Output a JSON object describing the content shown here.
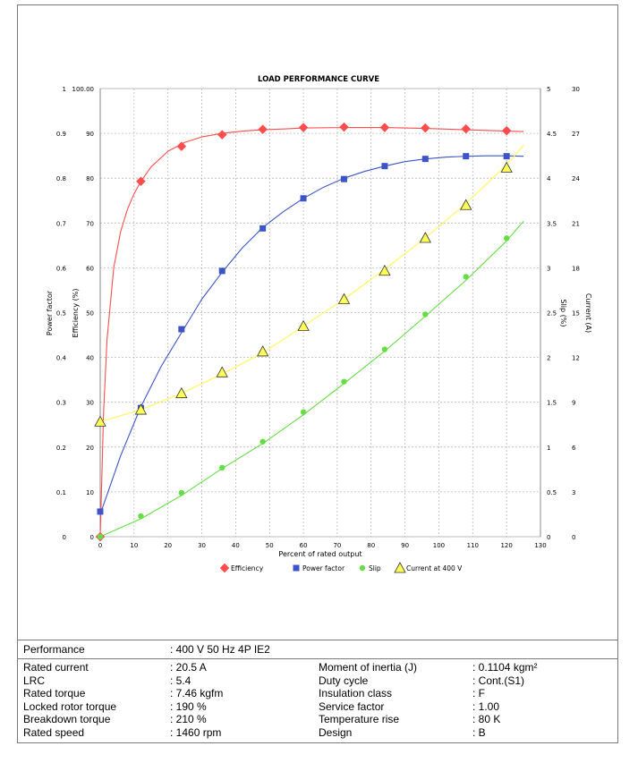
{
  "chart_data": {
    "type": "line",
    "title": "LOAD PERFORMANCE CURVE",
    "xlabel": "Percent of rated output",
    "xlim": [
      0,
      130
    ],
    "x_ticks": [
      "0",
      "10",
      "20",
      "30",
      "40",
      "50",
      "60",
      "70",
      "80",
      "90",
      "100",
      "110",
      "120",
      "130"
    ],
    "axes": {
      "power_factor": {
        "label": "Power factor",
        "range": [
          0,
          1
        ],
        "ticks": [
          "0",
          "0.1",
          "0.2",
          "0.3",
          "0.4",
          "0.5",
          "0.6",
          "0.7",
          "0.8",
          "0.9",
          "1"
        ]
      },
      "efficiency": {
        "label": "Efficiency (%)",
        "range": [
          0,
          100
        ],
        "ticks": [
          "0",
          "10",
          "20",
          "30",
          "40",
          "50",
          "60",
          "70",
          "80",
          "90",
          "100.00"
        ]
      },
      "slip": {
        "label": "Slip (%)",
        "range": [
          0,
          5
        ],
        "ticks": [
          "0",
          "0.5",
          "1",
          "1.5",
          "2",
          "2.5",
          "3",
          "3.5",
          "4",
          "4.5",
          "5"
        ]
      },
      "current": {
        "label": "Current (A)",
        "range": [
          0,
          30
        ],
        "ticks": [
          "0",
          "3",
          "6",
          "9",
          "12",
          "15",
          "18",
          "21",
          "24",
          "27",
          "30"
        ]
      }
    },
    "grid": true,
    "legend_position": "bottom",
    "series": [
      {
        "name": "Efficiency",
        "axis": "efficiency",
        "color": "#ff4d4d",
        "marker": "diamond",
        "curve_x": [
          0,
          1,
          2,
          4,
          6,
          8,
          10,
          12,
          15,
          20,
          25,
          30,
          36,
          42,
          48,
          55,
          60,
          72,
          84,
          96,
          108,
          120,
          125
        ],
        "curve_y": [
          0,
          28,
          44,
          60,
          68,
          73,
          76.5,
          79.3,
          82.5,
          86,
          88,
          89.2,
          90,
          90.5,
          90.8,
          91,
          91.2,
          91.3,
          91.3,
          91.1,
          90.8,
          90.5,
          90.4
        ],
        "points_x": [
          0,
          12,
          24,
          36,
          48,
          60,
          72,
          84,
          96,
          108,
          120
        ],
        "points_y": [
          0,
          79.3,
          87.1,
          89.7,
          90.9,
          91.3,
          91.4,
          91.3,
          91.2,
          91.0,
          90.6
        ]
      },
      {
        "name": "Power factor",
        "axis": "power_factor",
        "color": "#3c54c8",
        "marker": "square",
        "curve_x": [
          0,
          6,
          12,
          18,
          24,
          30,
          36,
          42,
          48,
          54,
          60,
          66,
          72,
          78,
          84,
          90,
          96,
          102,
          108,
          114,
          120,
          125
        ],
        "curve_y": [
          0.05,
          0.18,
          0.29,
          0.38,
          0.455,
          0.53,
          0.59,
          0.645,
          0.69,
          0.725,
          0.755,
          0.78,
          0.8,
          0.815,
          0.827,
          0.837,
          0.843,
          0.847,
          0.849,
          0.85,
          0.85,
          0.849
        ],
        "points_x": [
          0,
          12,
          24,
          36,
          48,
          60,
          72,
          84,
          96,
          108,
          120
        ],
        "points_y": [
          0.056,
          0.287,
          0.463,
          0.593,
          0.688,
          0.755,
          0.798,
          0.827,
          0.843,
          0.849,
          0.849
        ]
      },
      {
        "name": "Slip",
        "axis": "slip",
        "color": "#66dd44",
        "marker": "circle",
        "curve_x": [
          0,
          12,
          24,
          36,
          48,
          60,
          72,
          84,
          96,
          108,
          120,
          125
        ],
        "curve_y": [
          0,
          0.2,
          0.46,
          0.76,
          1.04,
          1.36,
          1.71,
          2.07,
          2.46,
          2.86,
          3.3,
          3.52
        ],
        "points_x": [
          0,
          12,
          24,
          36,
          48,
          60,
          72,
          84,
          96,
          108,
          120
        ],
        "points_y": [
          0,
          0.23,
          0.49,
          0.77,
          1.06,
          1.39,
          1.73,
          2.09,
          2.48,
          2.9,
          3.33
        ]
      },
      {
        "name": "Current at 400 V",
        "axis": "current",
        "color": "#ffff55",
        "marker": "triangle",
        "curve_x": [
          0,
          12,
          24,
          36,
          48,
          60,
          72,
          84,
          96,
          108,
          120,
          125
        ],
        "curve_y": [
          7.7,
          8.5,
          9.6,
          10.9,
          12.3,
          14.1,
          15.9,
          17.9,
          20.0,
          22.3,
          24.9,
          26.2
        ],
        "points_x": [
          0,
          12,
          24,
          36,
          48,
          60,
          72,
          84,
          96,
          108,
          120
        ],
        "points_y": [
          7.7,
          8.5,
          9.6,
          11.0,
          12.4,
          14.1,
          15.9,
          17.8,
          20.0,
          22.2,
          24.7
        ]
      }
    ]
  },
  "table": {
    "performance_label": "Performance",
    "performance_value": ": 400 V 50 Hz 4P IE2",
    "left": [
      {
        "label": "Rated current",
        "value": ": 20.5 A"
      },
      {
        "label": "LRC",
        "value": ": 5.4"
      },
      {
        "label": "Rated torque",
        "value": ": 7.46 kgfm"
      },
      {
        "label": "Locked rotor torque",
        "value": ": 190 %"
      },
      {
        "label": "Breakdown torque",
        "value": ": 210 %"
      },
      {
        "label": "Rated speed",
        "value": ": 1460 rpm"
      }
    ],
    "right": [
      {
        "label": "Moment of inertia (J)",
        "value": ": 0.1104 kgm²"
      },
      {
        "label": "Duty cycle",
        "value": ": Cont.(S1)"
      },
      {
        "label": "Insulation class",
        "value": ": F"
      },
      {
        "label": "Service factor",
        "value": ": 1.00"
      },
      {
        "label": "Temperature rise",
        "value": ": 80 K"
      },
      {
        "label": "Design",
        "value": ": B"
      }
    ]
  }
}
